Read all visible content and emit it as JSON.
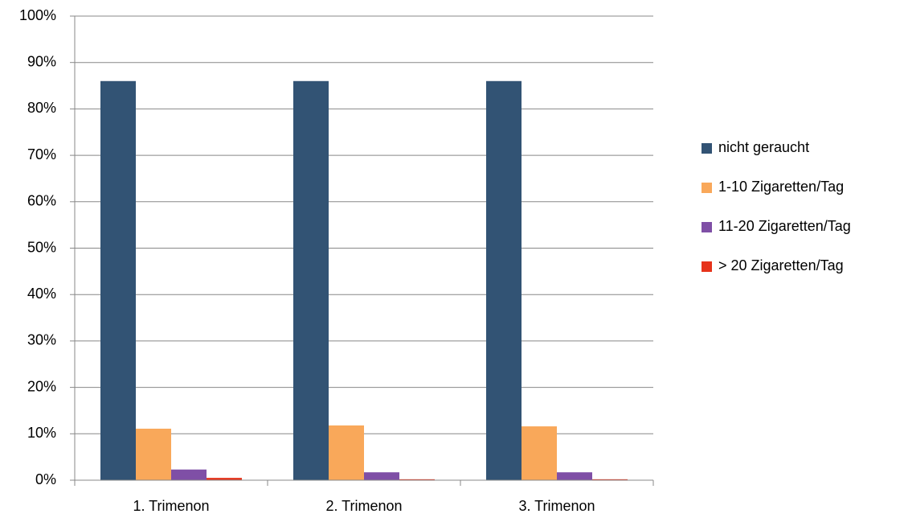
{
  "chart_data": {
    "type": "bar",
    "categories": [
      "1. Trimenon",
      "2. Trimenon",
      "3. Trimenon"
    ],
    "series": [
      {
        "name": "nicht geraucht",
        "color": "#325374",
        "values": [
          86,
          86,
          86
        ]
      },
      {
        "name": "1-10 Zigaretten/Tag",
        "color": "#f9a85a",
        "values": [
          11.1,
          11.8,
          11.6
        ]
      },
      {
        "name": "11-20 Zigaretten/Tag",
        "color": "#7f4fa6",
        "values": [
          2.3,
          1.7,
          1.7
        ]
      },
      {
        "name": "> 20 Zigaretten/Tag",
        "color": "#e6331b",
        "values": [
          0.5,
          0.2,
          0.2
        ]
      }
    ],
    "ylim": [
      0,
      100
    ],
    "yticks": [
      {
        "value": 0,
        "label": "0%"
      },
      {
        "value": 10,
        "label": "10%"
      },
      {
        "value": 20,
        "label": "20%"
      },
      {
        "value": 30,
        "label": "30%"
      },
      {
        "value": 40,
        "label": "40%"
      },
      {
        "value": 50,
        "label": "50%"
      },
      {
        "value": 60,
        "label": "60%"
      },
      {
        "value": 70,
        "label": "70%"
      },
      {
        "value": 80,
        "label": "80%"
      },
      {
        "value": 90,
        "label": "90%"
      },
      {
        "value": 100,
        "label": "100%"
      }
    ],
    "grid": true,
    "legend": "right"
  }
}
